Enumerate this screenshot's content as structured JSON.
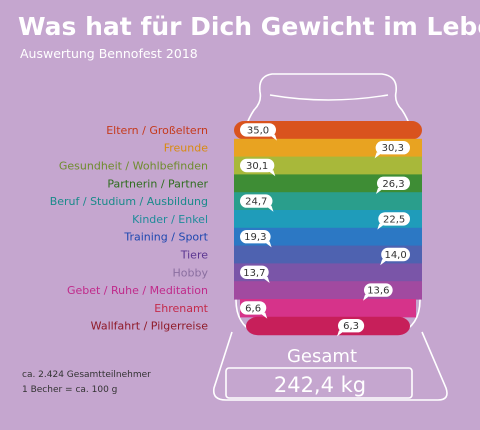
{
  "title": "Was hat für Dich Gewicht im Leben?",
  "subtitle": "Auswertung Bennofest 2018",
  "total_label": "Gesamt",
  "total_value": "242,4 kg",
  "footnote": [
    "ca. 2.424 Gesamtteilnehmer",
    "1 Becher = ca. 100 g"
  ],
  "colors": {
    "background": "#c5a6cf",
    "jar_outline": "#ffffff",
    "bubble": "#ffffff"
  },
  "chart_data": {
    "type": "bar",
    "categories": [
      "Eltern / Großeltern",
      "Freunde",
      "Gesundheit / Wohlbefinden",
      "Partnerin / Partner",
      "Beruf / Studium / Ausbildung",
      "Kinder / Enkel",
      "Training / Sport",
      "Tiere",
      "Hobby",
      "Gebet / Ruhe / Meditation",
      "Ehrenamt",
      "Wallfahrt / Pilgerreise"
    ],
    "values": [
      35.0,
      30.3,
      30.1,
      26.3,
      24.7,
      22.5,
      19.3,
      14.0,
      13.7,
      13.6,
      6.6,
      6.3
    ],
    "value_labels": [
      "35,0",
      "30,3",
      "30,1",
      "26,3",
      "24,7",
      "22,5",
      "19,3",
      "14,0",
      "13,7",
      "13,6",
      "6,6",
      "6,3"
    ],
    "label_colors": [
      "#c53a1c",
      "#d98a10",
      "#6f8c2e",
      "#2f6d1f",
      "#1a8a8a",
      "#1f8b9a",
      "#1f48b0",
      "#5a3590",
      "#8a6fa0",
      "#c02a8a",
      "#c42a4a",
      "#8f1a28"
    ],
    "band_colors": [
      "#d9531e",
      "#e8a321",
      "#a8b83a",
      "#3e8d35",
      "#2a9e8c",
      "#1f9cba",
      "#2c78c4",
      "#4e62b0",
      "#7a55a8",
      "#a14aa0",
      "#d6338a",
      "#c71f5a"
    ],
    "unit": "kg"
  }
}
